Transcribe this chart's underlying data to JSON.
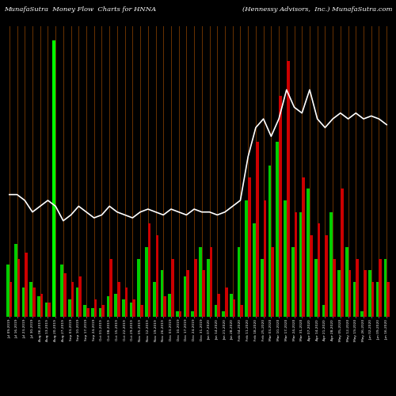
{
  "title_left": "MunafaSutra  Money Flow  Charts for HNNA",
  "title_right": "(Hennessy Advisors,  Inc.) MunafaSutra.com",
  "background_color": "#000000",
  "bar_color_green": "#00cc00",
  "bar_color_bright_green": "#00ff00",
  "bar_color_red": "#cc0000",
  "grid_color": "#7B3A00",
  "line_color": "#ffffff",
  "bar_pairs": [
    {
      "g": 18,
      "r": 12
    },
    {
      "g": 25,
      "r": 20
    },
    {
      "g": 10,
      "r": 22
    },
    {
      "g": 12,
      "r": 10
    },
    {
      "g": 7,
      "r": 8
    },
    {
      "g": 5,
      "r": 5
    },
    {
      "g": 95,
      "r": 0,
      "bright": true
    },
    {
      "g": 18,
      "r": 15
    },
    {
      "g": 6,
      "r": 12
    },
    {
      "g": 10,
      "r": 14
    },
    {
      "g": 4,
      "r": 3
    },
    {
      "g": 3,
      "r": 6
    },
    {
      "g": 3,
      "r": 4
    },
    {
      "g": 7,
      "r": 20
    },
    {
      "g": 8,
      "r": 12
    },
    {
      "g": 6,
      "r": 10
    },
    {
      "g": 5,
      "r": 6
    },
    {
      "g": 20,
      "r": 4
    },
    {
      "g": 24,
      "r": 32
    },
    {
      "g": 12,
      "r": 28
    },
    {
      "g": 16,
      "r": 7
    },
    {
      "g": 8,
      "r": 20
    },
    {
      "g": 2,
      "r": 2
    },
    {
      "g": 14,
      "r": 16
    },
    {
      "g": 2,
      "r": 20
    },
    {
      "g": 24,
      "r": 16
    },
    {
      "g": 20,
      "r": 24
    },
    {
      "g": 4,
      "r": 8
    },
    {
      "g": 2,
      "r": 10
    },
    {
      "g": 8,
      "r": 6
    },
    {
      "g": 24,
      "r": 4
    },
    {
      "g": 40,
      "r": 48
    },
    {
      "g": 32,
      "r": 60
    },
    {
      "g": 20,
      "r": 40
    },
    {
      "g": 52,
      "r": 24
    },
    {
      "g": 60,
      "r": 76
    },
    {
      "g": 40,
      "r": 88
    },
    {
      "g": 24,
      "r": 36
    },
    {
      "g": 36,
      "r": 48
    },
    {
      "g": 44,
      "r": 28
    },
    {
      "g": 20,
      "r": 32
    },
    {
      "g": 4,
      "r": 28
    },
    {
      "g": 36,
      "r": 20
    },
    {
      "g": 16,
      "r": 44
    },
    {
      "g": 24,
      "r": 16
    },
    {
      "g": 12,
      "r": 20
    },
    {
      "g": 2,
      "r": 16
    },
    {
      "g": 16,
      "r": 12
    },
    {
      "g": 12,
      "r": 20
    },
    {
      "g": 20,
      "r": 12
    }
  ],
  "line_values": [
    42,
    42,
    40,
    36,
    38,
    40,
    38,
    33,
    35,
    38,
    36,
    34,
    35,
    38,
    36,
    35,
    34,
    36,
    37,
    36,
    35,
    37,
    36,
    35,
    37,
    36,
    36,
    35,
    36,
    38,
    40,
    55,
    65,
    68,
    62,
    68,
    78,
    72,
    70,
    78,
    68,
    65,
    68,
    70,
    68,
    70,
    68,
    69,
    68,
    66
  ],
  "xlabels": [
    "Jul 09,2019",
    "Jul 16,2019",
    "Jul 23,2019",
    "Jul 30,2019",
    "Aug 06,2019",
    "Aug 13,2019",
    "Aug 20,2019",
    "Aug 27,2019",
    "Sep 03,2019",
    "Sep 10,2019",
    "Sep 17,2019",
    "Sep 24,2019",
    "Oct 01,2019",
    "Oct 08,2019",
    "Oct 15,2019",
    "Oct 22,2019",
    "Oct 29,2019",
    "Nov 05,2019",
    "Nov 12,2019",
    "Nov 19,2019",
    "Nov 26,2019",
    "Dec 03,2019",
    "Dec 10,2019",
    "Dec 17,2019",
    "Dec 24,2019",
    "Dec 31,2019",
    "Jan 07,2020",
    "Jan 14,2020",
    "Jan 21,2020",
    "Jan 28,2020",
    "Feb 04,2020",
    "Feb 11,2020",
    "Feb 18,2020",
    "Feb 25,2020",
    "Mar 03,2020",
    "Mar 10,2020",
    "Mar 17,2020",
    "Mar 24,2020",
    "Mar 31,2020",
    "Apr 07,2020",
    "Apr 14,2020",
    "Apr 21,2020",
    "Apr 28,2020",
    "May 05,2020",
    "May 12,2020",
    "May 19,2020",
    "May 26,2020",
    "Jun 02,2020",
    "Jun 09,2020",
    "Jun 16,2020"
  ],
  "ylim_max": 100,
  "figsize": [
    5.0,
    5.0
  ],
  "dpi": 100
}
